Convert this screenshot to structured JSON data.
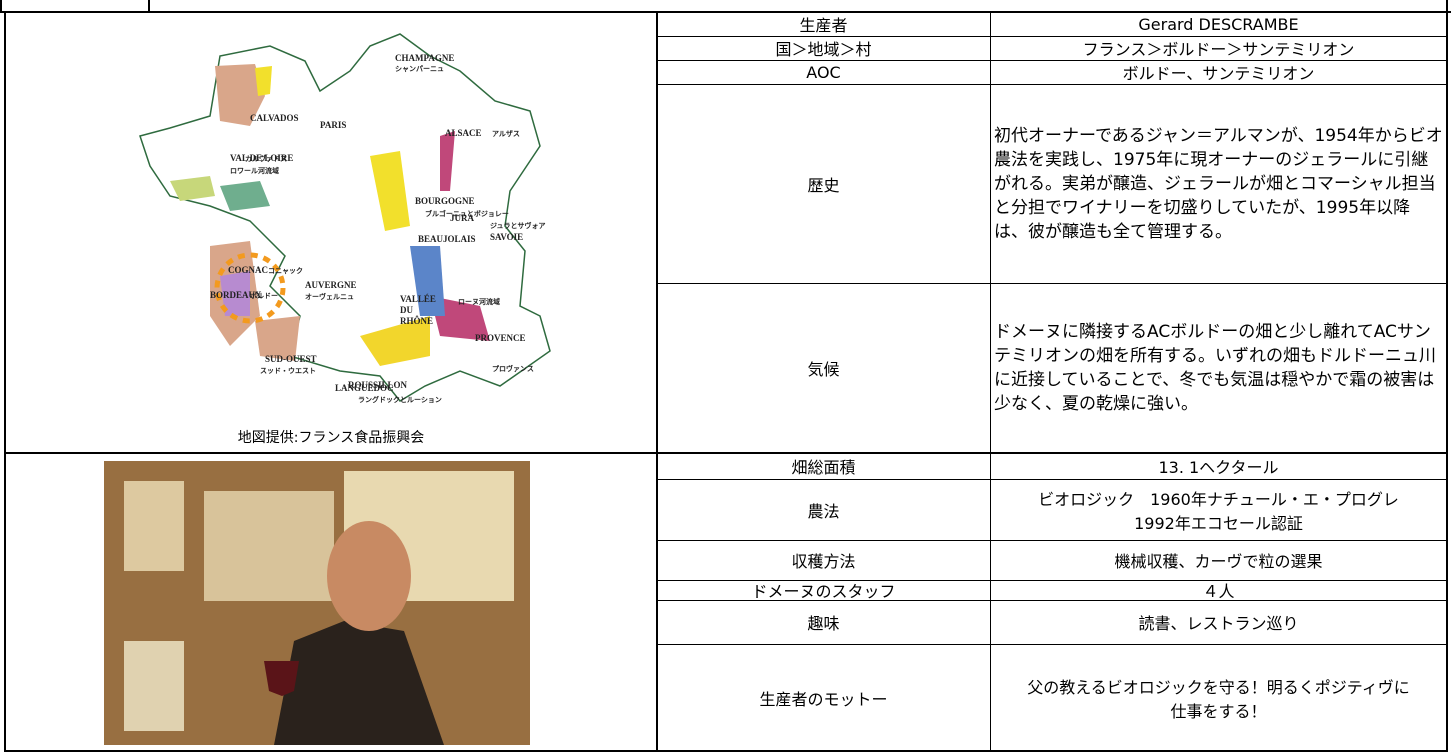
{
  "table": {
    "rows": [
      {
        "label": "生産者",
        "value": "Gerard DESCRAMBE"
      },
      {
        "label": "国＞地域＞村",
        "value": "フランス＞ボルドー＞サンテミリオン"
      },
      {
        "label": "AOC",
        "value": "ボルドー、サンテミリオン"
      },
      {
        "label": "歴史",
        "value": "初代オーナーであるジャン＝アルマンが、1954年からビオ農法を実践し、1975年に現オーナーのジェラールに引継がれる。実弟が醸造、ジェラールが畑とコマーシャル担当と分担でワイナリーを切盛りしていたが、1995年以降は、彼が醸造も全て管理する。"
      },
      {
        "label": "気候",
        "value": "ドメーヌに隣接するACボルドーの畑と少し離れてACサンテミリオンの畑を所有する。いずれの畑もドルドーニュ川に近接していることで、冬でも気温は穏やかで霜の被害は少なく、夏の乾燥に強い。"
      },
      {
        "label": "畑総面積",
        "value": "13. 1ヘクタール"
      },
      {
        "label": "農法",
        "value": [
          "ビオロジック　1960年ナチュール・エ・プログレ",
          "1992年エコセール認証"
        ]
      },
      {
        "label": "収穫方法",
        "value": "機械収穫、カーヴで粒の選果"
      },
      {
        "label": "ドメーヌのスタッフ",
        "value": "４人"
      },
      {
        "label": "趣味",
        "value": "読書、レストラン巡り"
      },
      {
        "label": "生産者のモットー",
        "value": "父の教えるビオロジックを守る！明るくポジティヴに仕事をする！"
      }
    ]
  },
  "map": {
    "caption": "地図提供:フランス食品振興会",
    "labels": [
      "CHAMPAGNE",
      "シャンパーニュ",
      "CALVADOS",
      "カルヴァドス",
      "PARIS",
      "ALSACE",
      "アルザス",
      "VAL DE LOIRE",
      "ロワール河流域",
      "BOURGOGNE",
      "ブルゴーニュとボジョレー",
      "JURA",
      "ジュラとサヴォア",
      "SAVOIE",
      "BEAUJOLAIS",
      "COGNAC",
      "コニャック",
      "AUVERGNE",
      "オーヴェルニュ",
      "VALLÉE",
      "DU",
      "RHÔNE",
      "ローヌ河流域",
      "BORDEAUX",
      "ボルドー",
      "LANGUEDOC",
      "PROVENCE",
      "プロヴァンス",
      "SUD-OUEST",
      "スッド・ウエスト",
      "ROUSSILLON",
      "ラングドックとルーション"
    ]
  }
}
